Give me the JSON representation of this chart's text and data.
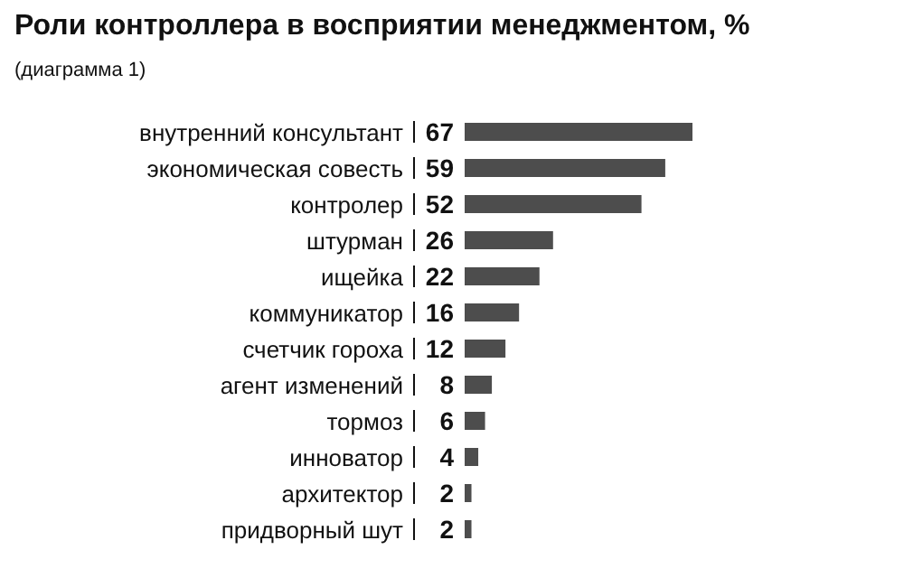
{
  "chart_data": {
    "type": "bar",
    "orientation": "horizontal",
    "title": "Роли контроллера в восприятии менеджментом, %",
    "subtitle": "(диаграмма 1)",
    "categories": [
      "внутренний консультант",
      "экономическая совесть",
      "контролер",
      "штурман",
      "ищейка",
      "коммуникатор",
      "счетчик гороха",
      "агент изменений",
      "тормоз",
      "инноватор",
      "архитектор",
      "придворный шут"
    ],
    "values": [
      67,
      59,
      52,
      26,
      22,
      16,
      12,
      8,
      6,
      4,
      2,
      2
    ],
    "color": "#4d4d4d",
    "data_labels": true,
    "tick_labels": "y"
  }
}
